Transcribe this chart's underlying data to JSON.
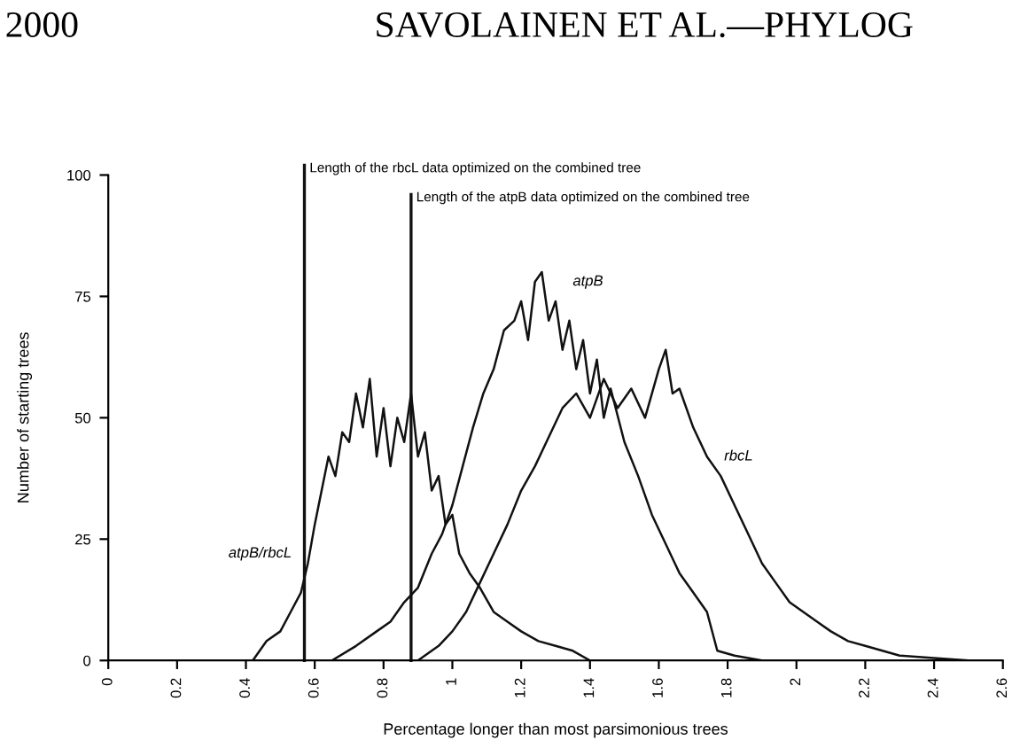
{
  "chart_data": {
    "type": "line",
    "xlabel": "Percentage longer than most parsimonious trees",
    "ylabel": "Number of starting trees",
    "xlim": [
      0,
      2.6
    ],
    "ylim": [
      0,
      100
    ],
    "xticks": [
      0,
      0.2,
      0.4,
      0.6,
      0.8,
      1,
      1.2,
      1.4,
      1.6,
      1.8,
      2,
      2.2,
      2.4,
      2.6
    ],
    "yticks": [
      0,
      25,
      50,
      75,
      100
    ],
    "grid": false,
    "legend": false,
    "marker": "none",
    "line_style": "solid",
    "series": [
      {
        "color": "#111111",
        "x": [
          0,
          0.42,
          0.46,
          0.5,
          0.53,
          0.56,
          0.58,
          0.6,
          0.62,
          0.64,
          0.66,
          0.68,
          0.7,
          0.72,
          0.74,
          0.76,
          0.78,
          0.8,
          0.82,
          0.84,
          0.86,
          0.88,
          0.9,
          0.92,
          0.94,
          0.96,
          0.98,
          1.0,
          1.02,
          1.05,
          1.08,
          1.12,
          1.16,
          1.2,
          1.25,
          1.3,
          1.35,
          1.4,
          2.6
        ],
        "values": [
          0,
          0,
          4,
          6,
          10,
          14,
          20,
          28,
          35,
          42,
          38,
          47,
          45,
          55,
          48,
          58,
          42,
          52,
          40,
          50,
          45,
          55,
          42,
          47,
          35,
          38,
          28,
          30,
          22,
          18,
          15,
          10,
          8,
          6,
          4,
          3,
          2,
          0,
          0
        ]
      },
      {
        "name": "atpB",
        "color": "#111111",
        "x": [
          0,
          0.65,
          0.72,
          0.78,
          0.82,
          0.86,
          0.9,
          0.94,
          0.97,
          1.0,
          1.03,
          1.06,
          1.09,
          1.12,
          1.15,
          1.18,
          1.2,
          1.22,
          1.24,
          1.26,
          1.28,
          1.3,
          1.32,
          1.34,
          1.36,
          1.38,
          1.4,
          1.42,
          1.44,
          1.46,
          1.5,
          1.54,
          1.58,
          1.62,
          1.66,
          1.7,
          1.74,
          1.77,
          1.82,
          1.9,
          2.6
        ],
        "values": [
          0,
          0,
          3,
          6,
          8,
          12,
          15,
          22,
          26,
          32,
          40,
          48,
          55,
          60,
          68,
          70,
          74,
          66,
          78,
          80,
          70,
          74,
          64,
          70,
          60,
          66,
          55,
          62,
          50,
          56,
          45,
          38,
          30,
          24,
          18,
          14,
          10,
          2,
          1,
          0,
          0
        ]
      },
      {
        "name": "rbcL",
        "color": "#111111",
        "x": [
          0,
          0.9,
          0.96,
          1.0,
          1.04,
          1.08,
          1.12,
          1.16,
          1.2,
          1.24,
          1.28,
          1.32,
          1.36,
          1.4,
          1.44,
          1.48,
          1.52,
          1.56,
          1.6,
          1.62,
          1.64,
          1.66,
          1.7,
          1.74,
          1.78,
          1.82,
          1.86,
          1.9,
          1.94,
          1.98,
          2.02,
          2.06,
          2.1,
          2.15,
          2.2,
          2.25,
          2.3,
          2.4,
          2.5,
          2.6
        ],
        "values": [
          0,
          0,
          3,
          6,
          10,
          16,
          22,
          28,
          35,
          40,
          46,
          52,
          55,
          50,
          58,
          52,
          56,
          50,
          60,
          64,
          55,
          56,
          48,
          42,
          38,
          32,
          26,
          20,
          16,
          12,
          10,
          8,
          6,
          4,
          3,
          2,
          1,
          0.5,
          0,
          0
        ]
      }
    ],
    "ref_lines": [
      {
        "axis": "x",
        "value": 0.57,
        "label": "Length of the rbcL data optimized on the combined tree"
      },
      {
        "axis": "x",
        "value": 0.88,
        "label": "Length of the atpB data optimized on the combined tree"
      }
    ],
    "annotations": [
      "atpB/rbcL",
      "2000",
      "SAVOLAINEN ET AL.—PHYLOG"
    ]
  }
}
